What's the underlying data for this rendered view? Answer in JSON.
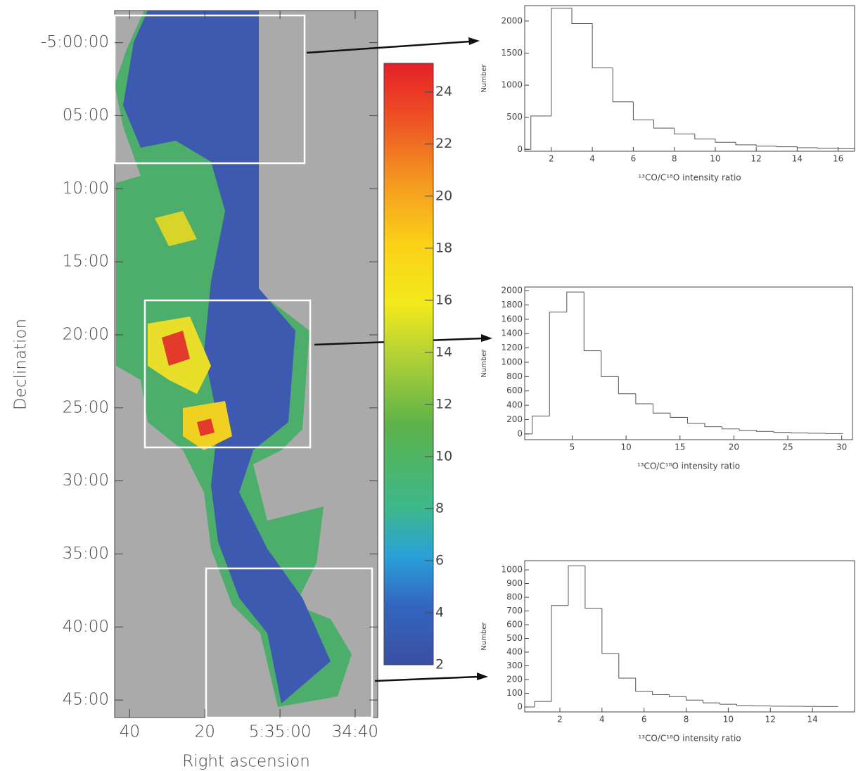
{
  "chart_data": [
    {
      "type": "image",
      "ylabel": "Declination",
      "xlabel": "Right ascension",
      "ylim": [
        -297.8,
        -346.2
      ],
      "yticks": [
        {
          "value": -300,
          "label": "-5:00:00"
        },
        {
          "value": -305,
          "label": "05:00"
        },
        {
          "value": -310,
          "label": "10:00"
        },
        {
          "value": -315,
          "label": "15:00"
        },
        {
          "value": -320,
          "label": "20:00"
        },
        {
          "value": -325,
          "label": "25:00"
        },
        {
          "value": -330,
          "label": "30:00"
        },
        {
          "value": -335,
          "label": "35:00"
        },
        {
          "value": -340,
          "label": "40:00"
        },
        {
          "value": -345,
          "label": "45:00"
        }
      ],
      "xlim": [
        44,
        -26
      ],
      "xticks": [
        40,
        20,
        {
          "value": 0,
          "label": "5:35:00"
        },
        {
          "value": -20,
          "label": "34:40"
        }
      ]
    },
    {
      "type": "colorbar",
      "ylim": [
        2,
        25.1
      ],
      "yticks": [
        2,
        4,
        6,
        8,
        10,
        12,
        14,
        16,
        18,
        20,
        22,
        24
      ]
    },
    {
      "type": "histogram",
      "ylabel": "Number",
      "xlabel": "¹³CO/C¹⁸O intensity ratio",
      "bins": [
        1,
        2,
        3,
        4,
        5,
        6,
        7,
        8,
        9,
        10,
        11,
        12,
        13,
        14,
        15,
        16,
        17
      ],
      "values": [
        520,
        2200,
        1960,
        1270,
        740,
        460,
        330,
        240,
        160,
        110,
        70,
        50,
        40,
        25,
        15,
        10
      ],
      "xlim": [
        0.7,
        16.8
      ],
      "xticks": [
        2,
        4,
        6,
        8,
        10,
        12,
        14,
        16
      ],
      "ylim": [
        -30,
        2240
      ],
      "yticks": [
        0,
        500,
        1000,
        1500,
        2000
      ],
      "color": "#555555"
    },
    {
      "type": "histogram",
      "ylabel": "Number",
      "xlabel": "¹³CO/C¹⁸O intensity ratio",
      "bins": [
        1.3,
        2.9,
        4.5,
        6.1,
        7.7,
        9.3,
        10.9,
        12.5,
        14.1,
        15.7,
        17.3,
        18.9,
        20.5,
        22.1,
        23.7,
        25.3,
        26.9,
        28.5,
        30.1
      ],
      "values": [
        250,
        1700,
        1980,
        1160,
        800,
        560,
        420,
        290,
        230,
        150,
        100,
        70,
        50,
        35,
        20,
        15,
        10,
        5
      ],
      "xlim": [
        0.6,
        31
      ],
      "xticks": [
        5,
        10,
        15,
        20,
        25,
        30
      ],
      "ylim": [
        -80,
        2050
      ],
      "yticks": [
        0,
        200,
        400,
        600,
        800,
        1000,
        1200,
        1400,
        1600,
        1800,
        2000
      ],
      "color": "#555555"
    },
    {
      "type": "histogram",
      "ylabel": "Number",
      "xlabel": "¹³CO/C¹⁸O intensity ratio",
      "bins": [
        0.8,
        1.6,
        2.4,
        3.2,
        4.0,
        4.8,
        5.6,
        6.4,
        7.2,
        8.0,
        8.8,
        9.6,
        10.4,
        11.2,
        12.0,
        12.8,
        13.6,
        14.4,
        15.2
      ],
      "values": [
        40,
        740,
        1030,
        720,
        390,
        210,
        115,
        90,
        75,
        50,
        30,
        20,
        10,
        8,
        6,
        5,
        4,
        3
      ],
      "xlim": [
        0.33,
        16
      ],
      "xticks": [
        2,
        4,
        6,
        8,
        10,
        12,
        14
      ],
      "ylim": [
        -36,
        1067
      ],
      "yticks": [
        0,
        100,
        200,
        300,
        400,
        500,
        600,
        700,
        800,
        900,
        1000
      ],
      "color": "#555555"
    }
  ]
}
